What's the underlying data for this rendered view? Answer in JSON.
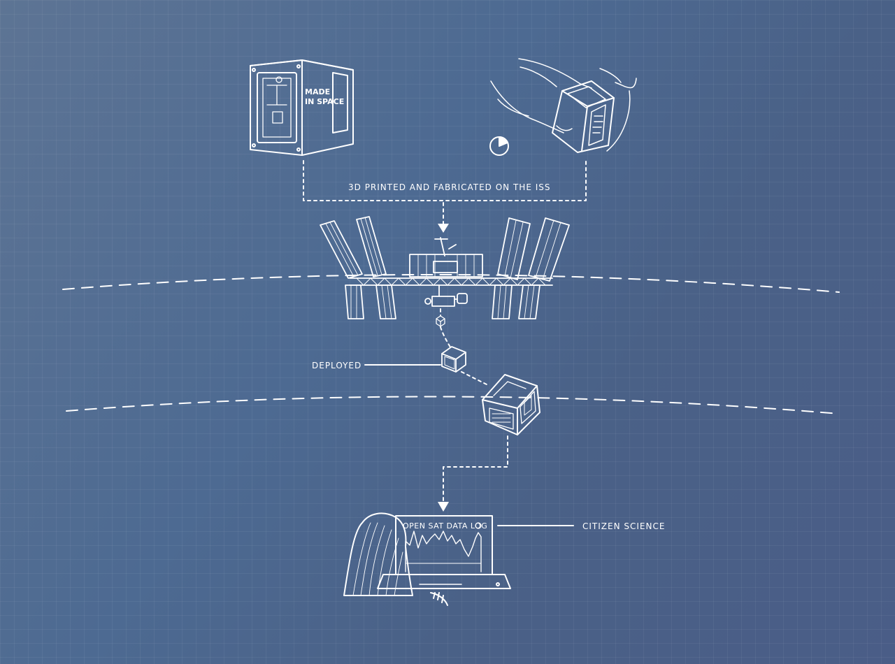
{
  "labels": {
    "fabrication": "3D PRINTED AND FABRICATED ON THE ISS",
    "deployed": "DEPLOYED",
    "citizen_science": "CITIZEN SCIENCE"
  },
  "printer": {
    "brand_line1": "MADE",
    "brand_line2": "IN SPACE"
  },
  "laptop": {
    "screen_title": "OPEN SAT DATA LOG"
  },
  "colors": {
    "background_start": "#5d7494",
    "background_end": "#4a5d87",
    "line": "#ffffff"
  }
}
